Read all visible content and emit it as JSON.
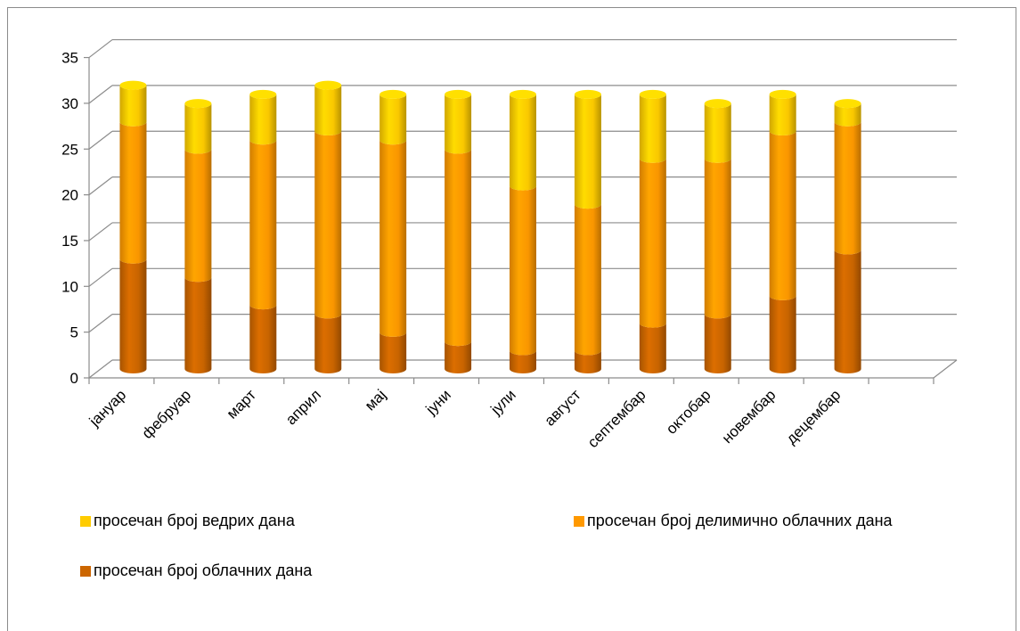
{
  "chart_data": {
    "type": "bar",
    "stacked": true,
    "style": "3d-cylinder",
    "categories": [
      "јануар",
      "фебруар",
      "март",
      "април",
      "мај",
      "јуни",
      "јули",
      "август",
      "септембар",
      "октобар",
      "новембар",
      "децембар"
    ],
    "series": [
      {
        "name": "просечан број облачних дана",
        "color": "#cc6600",
        "values": [
          12,
          10,
          7,
          6,
          4,
          3,
          2,
          2,
          5,
          6,
          8,
          13
        ]
      },
      {
        "name": "просечан број делимично облачних дана",
        "color": "#ff9900",
        "values": [
          15,
          14,
          18,
          20,
          21,
          21,
          18,
          16,
          18,
          17,
          18,
          14
        ]
      },
      {
        "name": "просечан број ведрих дана",
        "color": "#ffcc00",
        "values": [
          4,
          5,
          5,
          5,
          5,
          6,
          10,
          12,
          7,
          6,
          4,
          2
        ]
      }
    ],
    "yticks": [
      "0",
      "5",
      "10",
      "15",
      "20",
      "25",
      "30",
      "35"
    ],
    "ylim": [
      0,
      35
    ],
    "grid": true,
    "legend_position": "bottom"
  },
  "legend": {
    "clear": "просечан број ведрих дана",
    "partly": "просечан број делимично облачних дана",
    "cloudy": "просечан број облачних дана"
  }
}
